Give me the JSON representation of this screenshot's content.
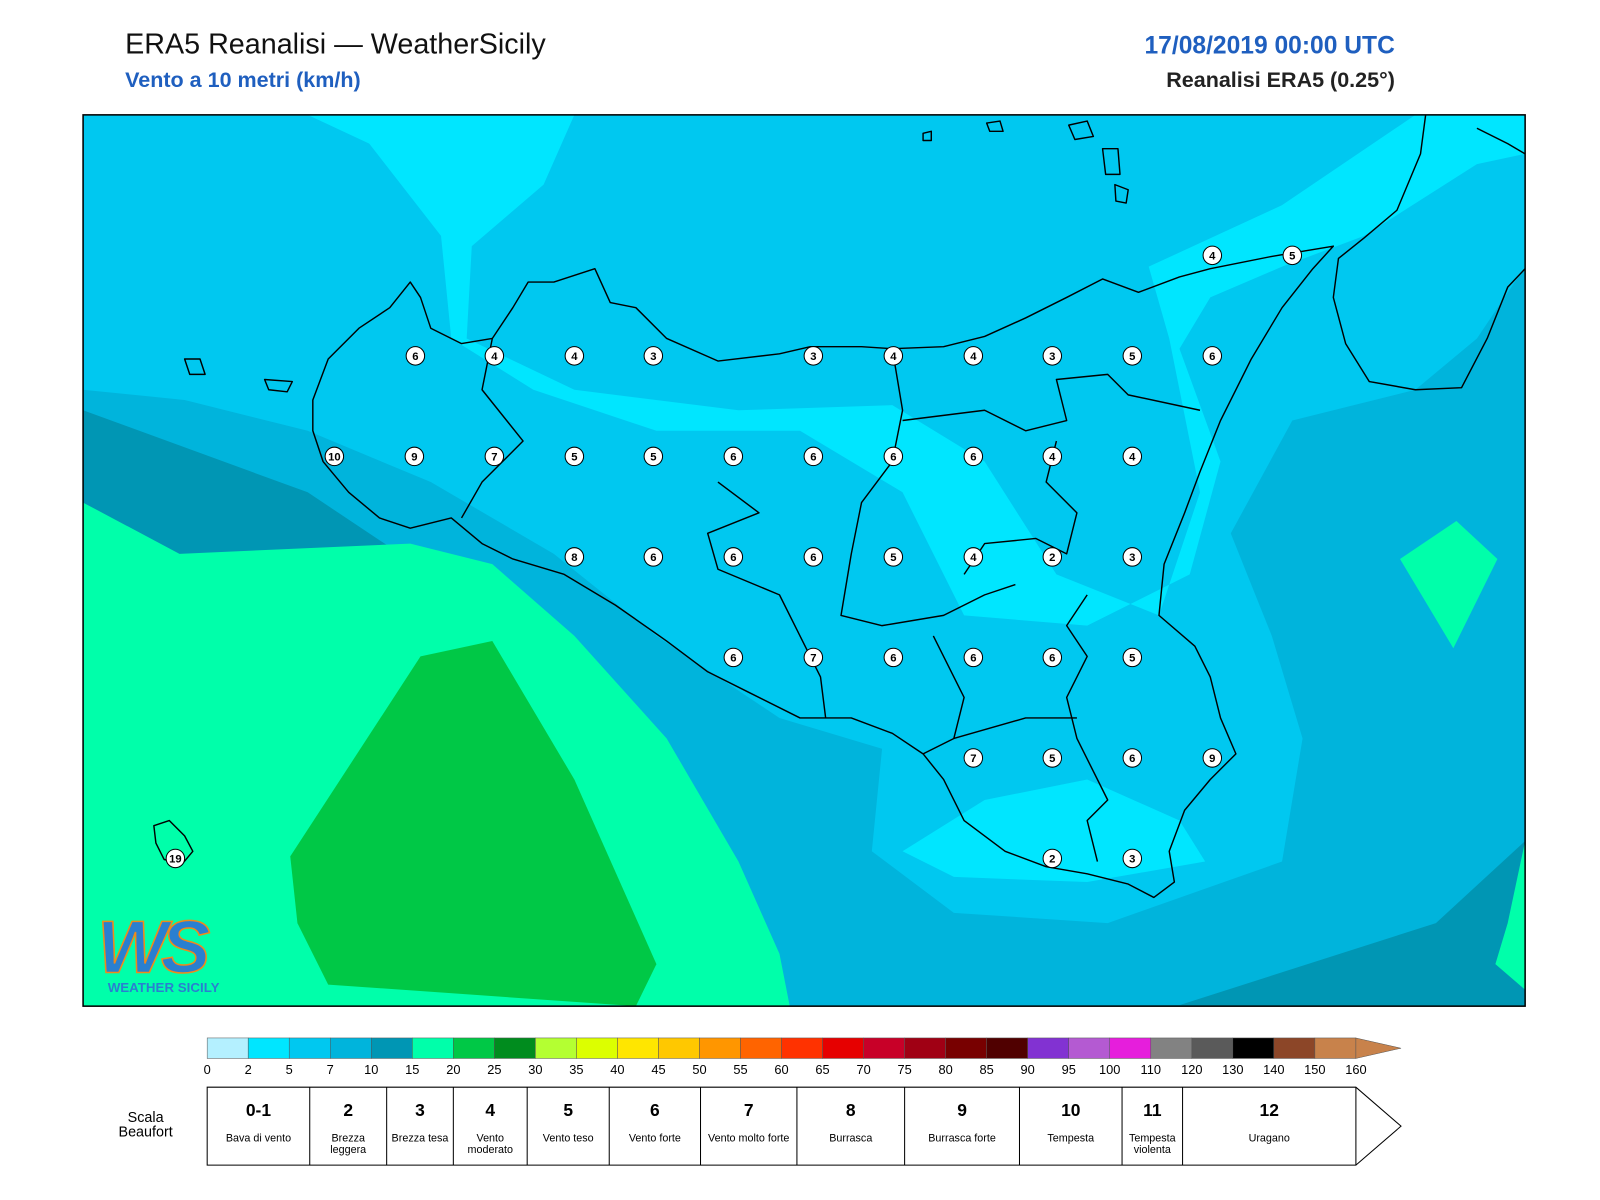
{
  "header": {
    "title": "ERA5 Reanalisi — WeatherSicily",
    "subtitle": "Vento a 10 metri (km/h)",
    "date": "17/08/2019 00:00 UTC",
    "source": "Reanalisi ERA5 (0.25°)"
  },
  "map": {
    "stations": [
      4,
      5,
      6,
      4,
      4,
      3,
      3,
      4,
      4,
      3,
      5,
      6,
      10,
      9,
      7,
      5,
      5,
      6,
      6,
      6,
      6,
      4,
      4,
      8,
      6,
      6,
      6,
      5,
      4,
      2,
      3,
      6,
      7,
      6,
      6,
      6,
      5,
      7,
      5,
      6,
      9,
      2,
      3,
      19
    ],
    "fill_colors": [
      "#0096b4",
      "#00b4dc",
      "#00c8f0",
      "#00e6ff",
      "#00ffaa",
      "#00c846"
    ]
  },
  "logo": {
    "mark": "WS",
    "name": "WEATHER SICILY"
  },
  "colorbar": {
    "ticks": [
      0,
      2,
      5,
      7,
      10,
      15,
      20,
      25,
      30,
      35,
      40,
      45,
      50,
      55,
      60,
      65,
      70,
      75,
      80,
      85,
      90,
      95,
      100,
      110,
      120,
      130,
      140,
      150,
      160
    ],
    "colors": [
      "#b4f0ff",
      "#00e6ff",
      "#00c8f0",
      "#00b4dc",
      "#0096b4",
      "#00ffaa",
      "#00c846",
      "#008c1e",
      "#b4ff32",
      "#dcff00",
      "#ffe600",
      "#ffc800",
      "#ff9600",
      "#ff6400",
      "#ff3200",
      "#e60000",
      "#c80028",
      "#a00014",
      "#780000",
      "#500000",
      "#8232d2",
      "#b45ad2",
      "#e61edc",
      "#828282",
      "#5a5a5a",
      "#000000",
      "#8c4628",
      "#c8824b"
    ]
  },
  "beaufort": {
    "label": "Scala Beaufort",
    "entries": [
      {
        "force": "0-1",
        "name": "Bava di vento"
      },
      {
        "force": "2",
        "name": "Brezza leggera"
      },
      {
        "force": "3",
        "name": "Brezza tesa"
      },
      {
        "force": "4",
        "name": "Vento moderato"
      },
      {
        "force": "5",
        "name": "Vento teso"
      },
      {
        "force": "6",
        "name": "Vento forte"
      },
      {
        "force": "7",
        "name": "Vento molto forte"
      },
      {
        "force": "8",
        "name": "Burrasca"
      },
      {
        "force": "9",
        "name": "Burrasca forte"
      },
      {
        "force": "10",
        "name": "Tempesta"
      },
      {
        "force": "11",
        "name": "Tempesta violenta"
      },
      {
        "force": "12",
        "name": "Uragano"
      }
    ]
  }
}
